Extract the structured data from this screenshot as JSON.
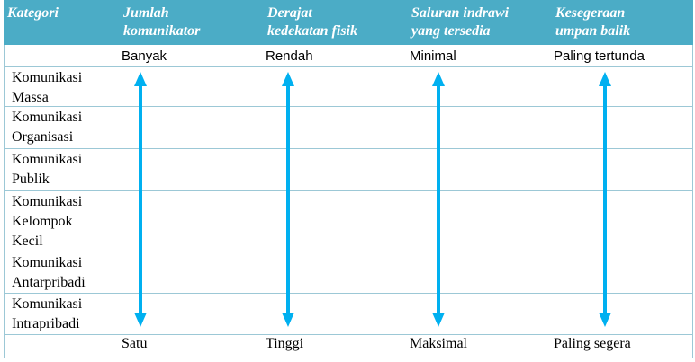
{
  "table": {
    "header": [
      [
        "Kategori"
      ],
      [
        "Jumlah",
        "komunikator"
      ],
      [
        "Derajat",
        "kedekatan fisik"
      ],
      [
        "Saluran indrawi",
        "yang tersedia"
      ],
      [
        "Kesegeraan",
        "umpan balik"
      ]
    ],
    "top_labels": [
      "Banyak",
      "Rendah",
      "Minimal",
      "Paling tertunda"
    ],
    "categories": [
      [
        "Komunikasi",
        "Massa"
      ],
      [
        "Komunikasi",
        "Organisasi"
      ],
      [
        "Komunikasi",
        "Publik"
      ],
      [
        "Komunikasi",
        "Kelompok",
        "Kecil"
      ],
      [
        "Komunikasi",
        "Antarpribadi"
      ],
      [
        "Komunikasi",
        "Intrapribadi"
      ]
    ],
    "bottom_labels": [
      "Satu",
      "Tinggi",
      "Maksimal",
      "Paling segera"
    ]
  }
}
